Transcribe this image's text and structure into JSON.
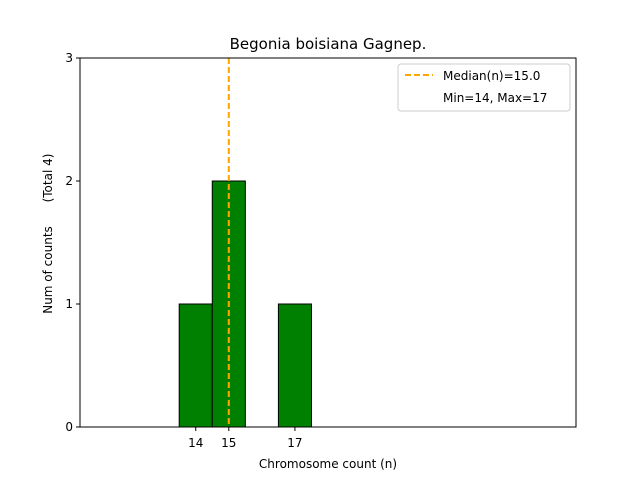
{
  "chart_data": {
    "type": "bar",
    "title": "Begonia boisiana Gagnep.",
    "xlabel": "Chromosome count (n)",
    "ylabel": "Num of counts",
    "ylabel_total": "(Total 4)",
    "xlim": [
      10.5,
      25.5
    ],
    "ylim": [
      0,
      3
    ],
    "y_ticks": [
      "0",
      "1",
      "2",
      "3"
    ],
    "x_ticks": [
      "14",
      "15",
      "17"
    ],
    "bars": [
      {
        "x": 14,
        "value": 1
      },
      {
        "x": 15,
        "value": 2
      },
      {
        "x": 16,
        "value": 0
      },
      {
        "x": 17,
        "value": 1
      },
      {
        "x": 18,
        "value": 0
      }
    ],
    "bar_width": 1,
    "bar_color": "#008000",
    "bar_edge_color": "#000000",
    "median": 15.0,
    "median_color": "#ffa500",
    "legend": {
      "position": "upper right",
      "median_label": "Median(n)=15.0",
      "range_label": "Min=14, Max=17"
    },
    "grid": false
  }
}
